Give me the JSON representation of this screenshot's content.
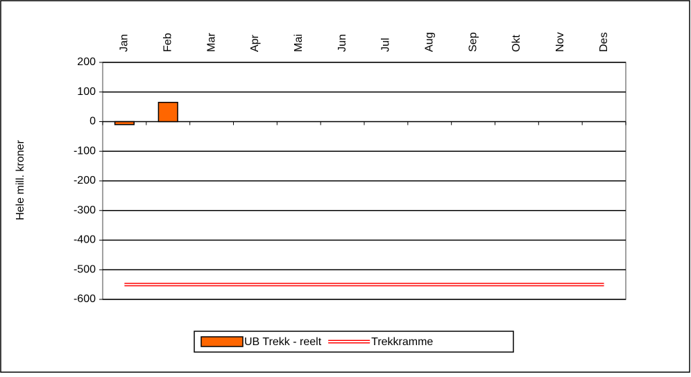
{
  "chart_data": {
    "type": "bar",
    "y_label": "Hele mill. kroner",
    "categories": [
      "Jan",
      "Feb",
      "Mar",
      "Apr",
      "Mai",
      "Jun",
      "Jul",
      "Aug",
      "Sep",
      "Okt",
      "Nov",
      "Des"
    ],
    "series": [
      {
        "name": "UB Trekk - reelt",
        "type": "bar",
        "color": "#ff6600",
        "values": [
          -10,
          65,
          null,
          null,
          null,
          null,
          null,
          null,
          null,
          null,
          null,
          null
        ]
      },
      {
        "name": "Trekkramme",
        "type": "line",
        "color": "#ff0000",
        "values": [
          -550,
          -550,
          -550,
          -550,
          -550,
          -550,
          -550,
          -550,
          -550,
          -550,
          -550,
          -550
        ]
      }
    ],
    "ylim": [
      -600,
      200
    ],
    "yticks": [
      -600,
      -500,
      -400,
      -300,
      -200,
      -100,
      0,
      100,
      200
    ],
    "grid": true
  }
}
